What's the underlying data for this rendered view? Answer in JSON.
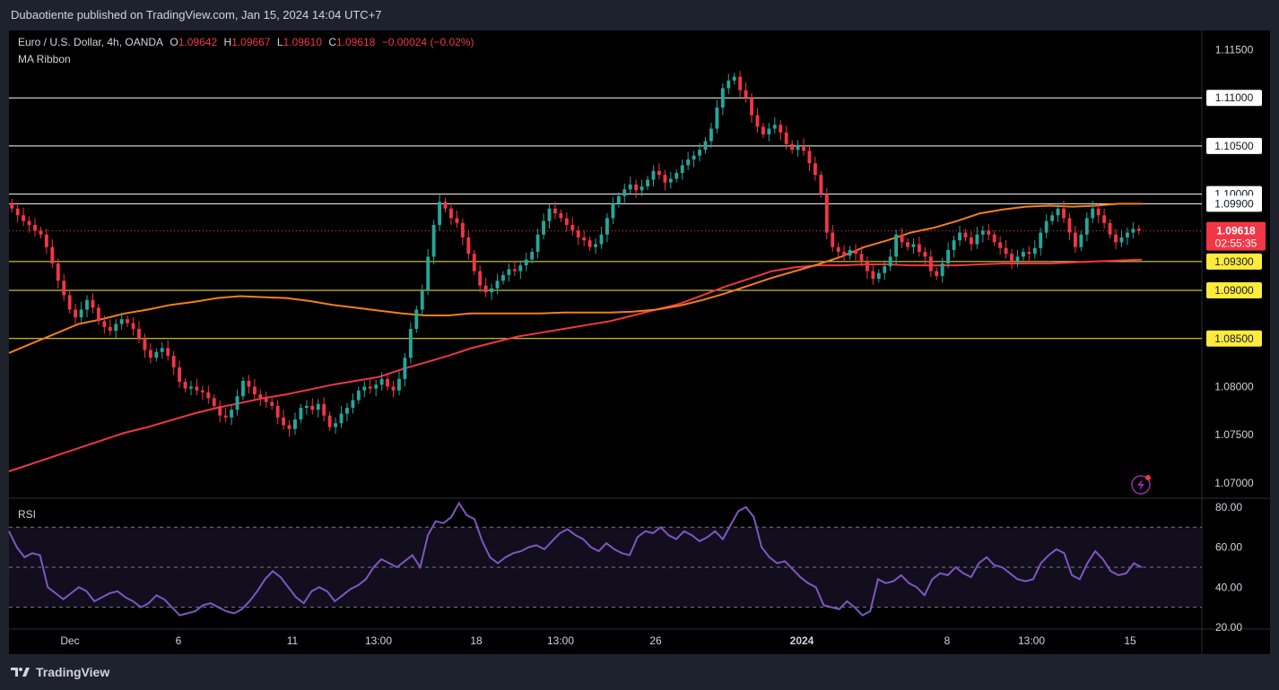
{
  "publisher": "Dubaotiente published on TradingView.com, Jan 15, 2024 14:04 UTC+7",
  "legend": {
    "symbol": "Euro / U.S. Dollar, 4h, OANDA",
    "o_label": "O",
    "o_value": "1.09642",
    "h_label": "H",
    "h_value": "1.09667",
    "l_label": "L",
    "l_value": "1.09610",
    "c_label": "C",
    "c_value": "1.09618",
    "change": "−0.00024 (−0.02%)"
  },
  "indicator_name": "MA Ribbon",
  "rsi_name": "RSI",
  "brand": "TradingView",
  "colors": {
    "up": "#26a69a",
    "down": "#f23645",
    "ma_orange": "#f57f17",
    "ma_red": "#f23645",
    "rsi": "#7e57c2",
    "level_yellow": "#ffeb3b",
    "level_white": "#ffffff"
  },
  "chart_data": {
    "type": "candlestick",
    "price_axis": {
      "ticks": [
        "1.11500",
        "1.08000",
        "1.07500",
        "1.07000"
      ],
      "ylim": [
        1.0685,
        1.117
      ]
    },
    "horizontal_levels": [
      {
        "value": 1.11,
        "label": "1.11000",
        "color": "#ffffff"
      },
      {
        "value": 1.105,
        "label": "1.10500",
        "color": "#ffffff"
      },
      {
        "value": 1.1,
        "label": "1.10000",
        "color": "#ffffff"
      },
      {
        "value": 1.099,
        "label": "1.09900",
        "color": "#ffffff"
      },
      {
        "value": 1.093,
        "label": "1.09300",
        "color": "#ffeb3b"
      },
      {
        "value": 1.09,
        "label": "1.09000",
        "color": "#ffeb3b"
      },
      {
        "value": 1.085,
        "label": "1.08500",
        "color": "#ffeb3b"
      }
    ],
    "current_price": {
      "value": 1.09618,
      "label": "1.09618",
      "countdown": "02:55:35"
    },
    "x_labels": [
      "Dec",
      "6",
      "11",
      "13:00",
      "18",
      "13:00",
      "26",
      "2024",
      "8",
      "13:00",
      "15"
    ],
    "closes": [
      1.0985,
      1.0978,
      1.0972,
      1.0968,
      1.0962,
      1.0958,
      1.0945,
      1.0928,
      1.091,
      1.0895,
      1.088,
      1.0872,
      1.088,
      1.089,
      1.0882,
      1.0868,
      1.0862,
      1.0858,
      1.0865,
      1.087,
      1.0866,
      1.086,
      1.085,
      1.0838,
      1.083,
      1.0836,
      1.084,
      1.0832,
      1.082,
      1.0805,
      1.0798,
      1.08,
      1.0796,
      1.0794,
      1.0788,
      1.078,
      1.077,
      1.0768,
      1.0776,
      1.079,
      1.0806,
      1.08,
      1.0792,
      1.0788,
      1.0784,
      1.078,
      1.0768,
      1.076,
      1.0756,
      1.0766,
      1.0778,
      1.078,
      1.0776,
      1.0782,
      1.077,
      1.0758,
      1.0762,
      1.0772,
      1.0778,
      1.0786,
      1.0796,
      1.08,
      1.0798,
      1.0802,
      1.0808,
      1.08,
      1.0796,
      1.0808,
      1.083,
      1.086,
      1.088,
      1.09,
      1.0935,
      1.0968,
      1.0992,
      1.0985,
      1.0975,
      1.097,
      1.0955,
      1.0938,
      1.092,
      1.0905,
      1.0898,
      1.0902,
      1.091,
      1.0916,
      1.0922,
      1.092,
      1.0926,
      1.0932,
      1.094,
      1.0958,
      1.0972,
      1.0985,
      1.098,
      1.0975,
      1.0968,
      1.0962,
      1.0955,
      1.0952,
      1.0945,
      1.0948,
      1.0958,
      1.0975,
      1.099,
      1.0998,
      1.1005,
      1.101,
      1.1004,
      1.1008,
      1.1015,
      1.1024,
      1.102,
      1.1012,
      1.1016,
      1.1022,
      1.103,
      1.1036,
      1.104,
      1.1046,
      1.1055,
      1.1068,
      1.109,
      1.111,
      1.1118,
      1.1122,
      1.1108,
      1.11,
      1.1082,
      1.107,
      1.1062,
      1.1068,
      1.1072,
      1.1064,
      1.1052,
      1.1046,
      1.105,
      1.1045,
      1.1032,
      1.102,
      1.1,
      1.096,
      1.0945,
      1.094,
      1.0936,
      1.0942,
      1.0938,
      1.093,
      1.092,
      1.0912,
      1.0918,
      1.0925,
      1.0935,
      1.0958,
      1.095,
      1.0945,
      1.0948,
      1.094,
      1.0935,
      1.092,
      1.0915,
      1.0928,
      1.0942,
      1.0952,
      1.096,
      1.0955,
      1.0948,
      1.0958,
      1.0962,
      1.0958,
      1.095,
      1.0944,
      1.0938,
      1.093,
      1.0935,
      1.094,
      1.0938,
      1.0944,
      1.096,
      1.0972,
      1.0978,
      1.0985,
      1.0975,
      1.096,
      1.0945,
      1.0958,
      1.0975,
      1.0985,
      1.0978,
      1.097,
      1.0958,
      1.095,
      1.0955,
      1.096,
      1.0964,
      1.0962
    ],
    "ma_orange": [
      1.0835,
      1.0845,
      1.0855,
      1.0865,
      1.087,
      1.0876,
      1.088,
      1.0885,
      1.0888,
      1.0892,
      1.0894,
      1.0893,
      1.0892,
      1.0889,
      1.0885,
      1.0882,
      1.0879,
      1.0876,
      1.0874,
      1.0874,
      1.0876,
      1.0876,
      1.0876,
      1.0876,
      1.0877,
      1.0877,
      1.0877,
      1.0878,
      1.088,
      1.0884,
      1.089,
      1.0897,
      1.0905,
      1.0913,
      1.092,
      1.0927,
      1.0935,
      1.0945,
      1.0952,
      1.096,
      1.0965,
      1.0972,
      1.098,
      1.0984,
      1.0987,
      1.0988,
      1.0987,
      1.0988,
      1.099,
      1.099
    ],
    "ma_red": [
      1.0712,
      1.072,
      1.0728,
      1.0736,
      1.0744,
      1.0752,
      1.0758,
      1.0765,
      1.0772,
      1.0778,
      1.0783,
      1.0788,
      1.0792,
      1.0797,
      1.0802,
      1.0806,
      1.081,
      1.0818,
      1.0825,
      1.0832,
      1.084,
      1.0846,
      1.0852,
      1.0856,
      1.086,
      1.0864,
      1.0868,
      1.0874,
      1.088,
      1.0886,
      1.0895,
      1.0904,
      1.0912,
      1.092,
      1.0924,
      1.0926,
      1.0926,
      1.0927,
      1.0927,
      1.0926,
      1.0926,
      1.0926,
      1.0927,
      1.0928,
      1.0928,
      1.0928,
      1.0929,
      1.093,
      1.0931,
      1.0932
    ],
    "rsi": {
      "ticks": [
        "80.00",
        "60.00",
        "40.00",
        "20.00"
      ],
      "ylim": [
        20,
        84
      ],
      "bands": [
        70,
        50,
        30
      ],
      "values": [
        68,
        60,
        55,
        57,
        56,
        40,
        37,
        34,
        37,
        40,
        38,
        33,
        35,
        37,
        38,
        35,
        33,
        30,
        32,
        36,
        34,
        30,
        26,
        27,
        28,
        31,
        32,
        30,
        28,
        27,
        29,
        33,
        38,
        44,
        48,
        45,
        40,
        35,
        32,
        38,
        40,
        38,
        33,
        36,
        39,
        41,
        44,
        50,
        54,
        52,
        50,
        53,
        56,
        50,
        66,
        73,
        72,
        75,
        82,
        76,
        74,
        63,
        55,
        52,
        55,
        57,
        58,
        60,
        61,
        59,
        63,
        67,
        69,
        66,
        64,
        60,
        58,
        62,
        59,
        57,
        56,
        65,
        68,
        67,
        70,
        66,
        64,
        68,
        66,
        63,
        65,
        68,
        64,
        71,
        78,
        80,
        75,
        60,
        55,
        52,
        53,
        49,
        45,
        42,
        40,
        31,
        30,
        29,
        33,
        30,
        26,
        28,
        44,
        42,
        43,
        46,
        42,
        40,
        36,
        44,
        47,
        46,
        50,
        47,
        45,
        52,
        55,
        51,
        50,
        47,
        44,
        43,
        44,
        52,
        56,
        59,
        57,
        46,
        44,
        52,
        58,
        54,
        48,
        46,
        47,
        52,
        50
      ]
    }
  }
}
